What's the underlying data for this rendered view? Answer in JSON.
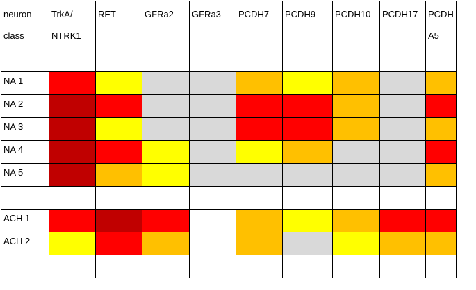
{
  "colors": {
    "dark_red": "#c00000",
    "red": "#ff0000",
    "orange": "#ffc000",
    "yellow": "#ffff00",
    "gray": "#d9d9d9",
    "white": "#ffffff"
  },
  "table": {
    "headers": [
      [
        "neuron",
        "class"
      ],
      [
        "TrkA/",
        "NTRK1"
      ],
      [
        "RET"
      ],
      [
        "GFRa2"
      ],
      [
        "GFRa3"
      ],
      [
        "PCDH7"
      ],
      [
        "PCDH9"
      ],
      [
        "PCDH10"
      ],
      [
        "PCDH17"
      ],
      [
        "PCDH",
        "A5"
      ]
    ],
    "rows": [
      {
        "label": "",
        "cells": [
          "white",
          "white",
          "white",
          "white",
          "white",
          "white",
          "white",
          "white",
          "white"
        ]
      },
      {
        "label": "NA 1",
        "cells": [
          "red",
          "yellow",
          "gray",
          "gray",
          "orange",
          "yellow",
          "orange",
          "gray",
          "orange"
        ]
      },
      {
        "label": "NA 2",
        "cells": [
          "dark_red",
          "red",
          "gray",
          "gray",
          "red",
          "red",
          "orange",
          "gray",
          "red"
        ]
      },
      {
        "label": "NA 3",
        "cells": [
          "dark_red",
          "yellow",
          "gray",
          "gray",
          "red",
          "red",
          "orange",
          "gray",
          "orange"
        ]
      },
      {
        "label": "NA 4",
        "cells": [
          "dark_red",
          "red",
          "yellow",
          "gray",
          "yellow",
          "orange",
          "gray",
          "gray",
          "red"
        ]
      },
      {
        "label": "NA 5",
        "cells": [
          "dark_red",
          "orange",
          "yellow",
          "gray",
          "gray",
          "gray",
          "gray",
          "gray",
          "orange"
        ]
      },
      {
        "label": "",
        "cells": [
          "white",
          "white",
          "white",
          "white",
          "white",
          "white",
          "white",
          "white",
          "white"
        ]
      },
      {
        "label": "ACH 1",
        "cells": [
          "red",
          "dark_red",
          "red",
          "white",
          "orange",
          "yellow",
          "orange",
          "red",
          "red"
        ]
      },
      {
        "label": "ACH 2",
        "cells": [
          "yellow",
          "red",
          "orange",
          "white",
          "orange",
          "gray",
          "yellow",
          "orange",
          "orange"
        ]
      },
      {
        "label": "",
        "cells": [
          "white",
          "white",
          "white",
          "white",
          "white",
          "white",
          "white",
          "white",
          "white"
        ]
      }
    ]
  }
}
